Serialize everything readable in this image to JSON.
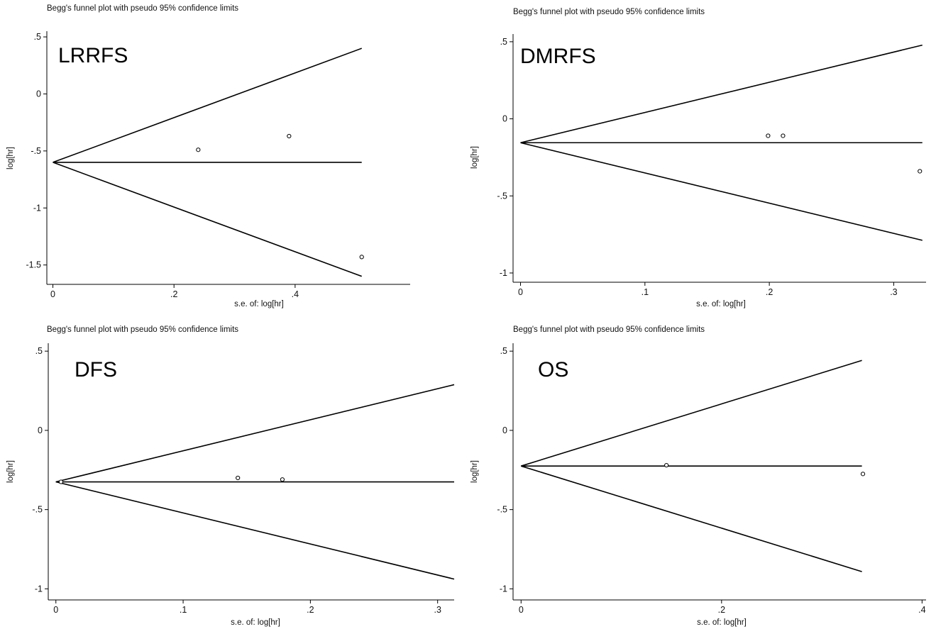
{
  "chart_data": [
    {
      "type": "scatter",
      "title": "Begg's funnel plot with pseudo 95% confidence limits",
      "label": "LRRFS",
      "xlabel": "s.e. of: log[hr]",
      "ylabel": "log[hr]",
      "xlim": [
        -0.01,
        0.59
      ],
      "ylim": [
        -1.67,
        0.55
      ],
      "xticks": [
        0,
        0.2,
        0.4
      ],
      "xtick_labels": [
        "0",
        ".2",
        ".4"
      ],
      "yticks": [
        0.5,
        0,
        -0.5,
        -1,
        -1.5
      ],
      "ytick_labels": [
        ".5",
        "0",
        "-.5",
        "-1",
        "-1.5"
      ],
      "pooled_estimate": -0.6,
      "max_se": 0.51,
      "points": [
        {
          "x": 0.24,
          "y": -0.49
        },
        {
          "x": 0.39,
          "y": -0.37
        },
        {
          "x": 0.51,
          "y": -1.43
        }
      ]
    },
    {
      "type": "scatter",
      "title": "Begg's funnel plot with pseudo 95% confidence limits",
      "label": "DMRFS",
      "xlabel": "s.e. of: log[hr]",
      "ylabel": "log[hr]",
      "xlim": [
        -0.006,
        0.326
      ],
      "ylim": [
        -1.06,
        0.55
      ],
      "xticks": [
        0,
        0.1,
        0.2,
        0.3
      ],
      "xtick_labels": [
        "0",
        ".1",
        ".2",
        ".3"
      ],
      "yticks": [
        0.5,
        0,
        -0.5,
        -1
      ],
      "ytick_labels": [
        ".5",
        "0",
        "-.5",
        "-1"
      ],
      "pooled_estimate": -0.155,
      "max_se": 0.323,
      "points": [
        {
          "x": 0.199,
          "y": -0.11
        },
        {
          "x": 0.211,
          "y": -0.11
        },
        {
          "x": 0.321,
          "y": -0.34
        }
      ]
    },
    {
      "type": "scatter",
      "title": "Begg's funnel plot with pseudo 95% confidence limits",
      "label": "DFS",
      "xlabel": "s.e. of: log[hr]",
      "ylabel": "log[hr]",
      "xlim": [
        -0.006,
        0.313
      ],
      "ylim": [
        -1.07,
        0.55
      ],
      "xticks": [
        0,
        0.1,
        0.2,
        0.3
      ],
      "xtick_labels": [
        "0",
        ".1",
        ".2",
        ".3"
      ],
      "yticks": [
        0.5,
        0,
        -0.5,
        -1
      ],
      "ytick_labels": [
        ".5",
        "0",
        "-.5",
        "-1"
      ],
      "pooled_estimate": -0.325,
      "max_se": 0.313,
      "points": [
        {
          "x": 0.004,
          "y": -0.325
        },
        {
          "x": 0.143,
          "y": -0.3
        },
        {
          "x": 0.178,
          "y": -0.31
        }
      ]
    },
    {
      "type": "scatter",
      "title": "Begg's funnel plot with pseudo 95% confidence limits",
      "label": "OS",
      "xlabel": "s.e. of: log[hr]",
      "ylabel": "log[hr]",
      "xlim": [
        -0.008,
        0.404
      ],
      "ylim": [
        -1.07,
        0.55
      ],
      "xticks": [
        0,
        0.2,
        0.4
      ],
      "xtick_labels": [
        "0",
        ".2",
        ".4"
      ],
      "yticks": [
        0.5,
        0,
        -0.5,
        -1
      ],
      "ytick_labels": [
        ".5",
        "0",
        "-.5",
        "-1"
      ],
      "pooled_estimate": -0.225,
      "max_se": 0.34,
      "points": [
        {
          "x": 0.145,
          "y": -0.22
        },
        {
          "x": 0.341,
          "y": -0.275
        }
      ]
    }
  ]
}
